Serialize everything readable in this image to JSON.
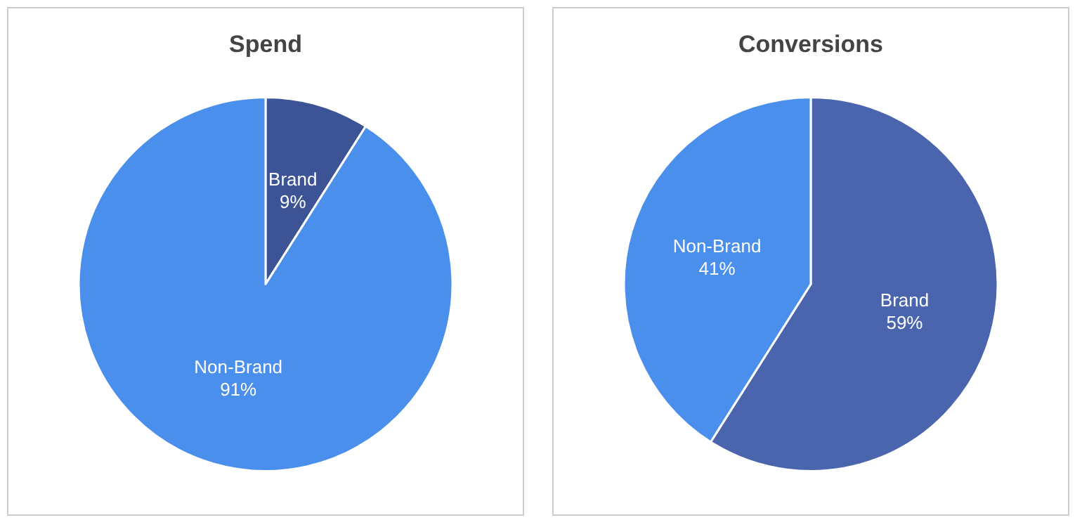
{
  "chart_data": [
    {
      "type": "pie",
      "title": "Spend",
      "categories": [
        "Brand",
        "Non-Brand"
      ],
      "values": [
        9,
        91
      ],
      "colors": [
        "#3c5396",
        "#4a8fec"
      ],
      "value_labels": [
        "9%",
        "91%"
      ]
    },
    {
      "type": "pie",
      "title": "Conversions",
      "categories": [
        "Brand",
        "Non-Brand"
      ],
      "values": [
        59,
        41
      ],
      "colors": [
        "#4a65ad",
        "#4a8fec"
      ],
      "value_labels": [
        "59%",
        "41%"
      ]
    }
  ]
}
